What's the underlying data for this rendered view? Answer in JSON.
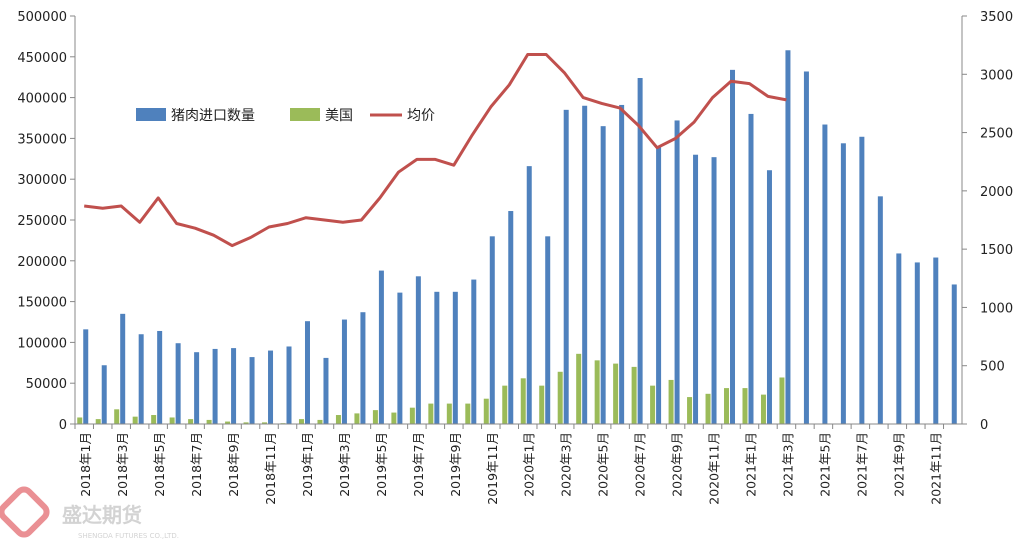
{
  "chart_data": {
    "type": "bar",
    "categories": [
      "2018年1月",
      "2018年2月",
      "2018年3月",
      "2018年4月",
      "2018年5月",
      "2018年6月",
      "2018年7月",
      "2018年8月",
      "2018年9月",
      "2018年10月",
      "2018年11月",
      "2018年12月",
      "2019年1月",
      "2019年2月",
      "2019年3月",
      "2019年4月",
      "2019年5月",
      "2019年6月",
      "2019年7月",
      "2019年8月",
      "2019年9月",
      "2019年10月",
      "2019年11月",
      "2019年12月",
      "2020年1月",
      "2020年2月",
      "2020年3月",
      "2020年4月",
      "2020年5月",
      "2020年6月",
      "2020年7月",
      "2020年8月",
      "2020年9月",
      "2020年10月",
      "2020年11月",
      "2020年12月",
      "2021年1月",
      "2021年2月",
      "2021年3月",
      "2021年4月",
      "2021年5月",
      "2021年6月",
      "2021年7月",
      "2021年8月",
      "2021年9月",
      "2021年10月",
      "2021年11月",
      "2021年12月"
    ],
    "x_tick_labels": [
      "2018年1月",
      "2018年3月",
      "2018年5月",
      "2018年7月",
      "2018年9月",
      "2018年11月",
      "2019年1月",
      "2019年3月",
      "2019年5月",
      "2019年7月",
      "2019年9月",
      "2019年11月",
      "2020年1月",
      "2020年3月",
      "2020年5月",
      "2020年7月",
      "2020年9月",
      "2020年11月",
      "2021年1月",
      "2021年3月",
      "2021年5月",
      "2021年7月",
      "2021年9月",
      "2021年11月"
    ],
    "series": [
      {
        "name": "猪肉进口数量",
        "type": "bar",
        "axis": "left",
        "color": "#4F81BD",
        "values": [
          116000,
          72000,
          135000,
          110000,
          114000,
          99000,
          88000,
          92000,
          93000,
          82000,
          90000,
          95000,
          126000,
          81000,
          128000,
          137000,
          188000,
          161000,
          181000,
          162000,
          162000,
          177000,
          230000,
          261000,
          316000,
          230000,
          385000,
          390000,
          365000,
          391000,
          424000,
          340000,
          372000,
          330000,
          327000,
          434000,
          380000,
          311000,
          458000,
          432000,
          367000,
          344000,
          352000,
          279000,
          209000,
          198000,
          204000,
          171000
        ]
      },
      {
        "name": "美国",
        "type": "bar",
        "axis": "left",
        "color": "#9BBB59",
        "values": [
          8000,
          6000,
          18000,
          9000,
          11000,
          8000,
          6000,
          5000,
          3000,
          2000,
          2000,
          1000,
          6000,
          5000,
          11000,
          13000,
          17000,
          14000,
          20000,
          25000,
          25000,
          25000,
          31000,
          47000,
          56000,
          47000,
          64000,
          86000,
          78000,
          74000,
          70000,
          47000,
          54000,
          33000,
          37000,
          44000,
          44000,
          36000,
          57000,
          null,
          null,
          null,
          null,
          null,
          null,
          null,
          null,
          null
        ]
      },
      {
        "name": "均价",
        "type": "line",
        "axis": "right",
        "color": "#C0504D",
        "values": [
          1870,
          1850,
          1870,
          1730,
          1940,
          1720,
          1680,
          1620,
          1530,
          1600,
          1690,
          1720,
          1770,
          1750,
          1730,
          1750,
          1940,
          2160,
          2270,
          2270,
          2220,
          2480,
          2720,
          2910,
          3170,
          3170,
          3010,
          2800,
          2750,
          2710,
          2560,
          2370,
          2450,
          2590,
          2800,
          2940,
          2920,
          2810,
          2780,
          null,
          null,
          null,
          null,
          null,
          null,
          null,
          null,
          null
        ]
      }
    ],
    "y_left": {
      "range": [
        0,
        500000
      ],
      "ticks": [
        "0",
        "50000",
        "100000",
        "150000",
        "200000",
        "250000",
        "300000",
        "350000",
        "400000",
        "450000",
        "500000"
      ]
    },
    "y_right": {
      "range": [
        0,
        3500
      ],
      "ticks": [
        "0",
        "500",
        "1000",
        "1500",
        "2000",
        "2500",
        "3000",
        "3500"
      ]
    },
    "legend": {
      "placement": "top-left-inside",
      "entries": [
        "猪肉进口数量",
        "美国",
        "均价"
      ]
    },
    "grid": false,
    "title": "",
    "xlabel": "",
    "ylabel": ""
  },
  "watermark": {
    "name": "盛达期货",
    "subtitle": "SHENGDA FUTURES CO.,LTD."
  }
}
